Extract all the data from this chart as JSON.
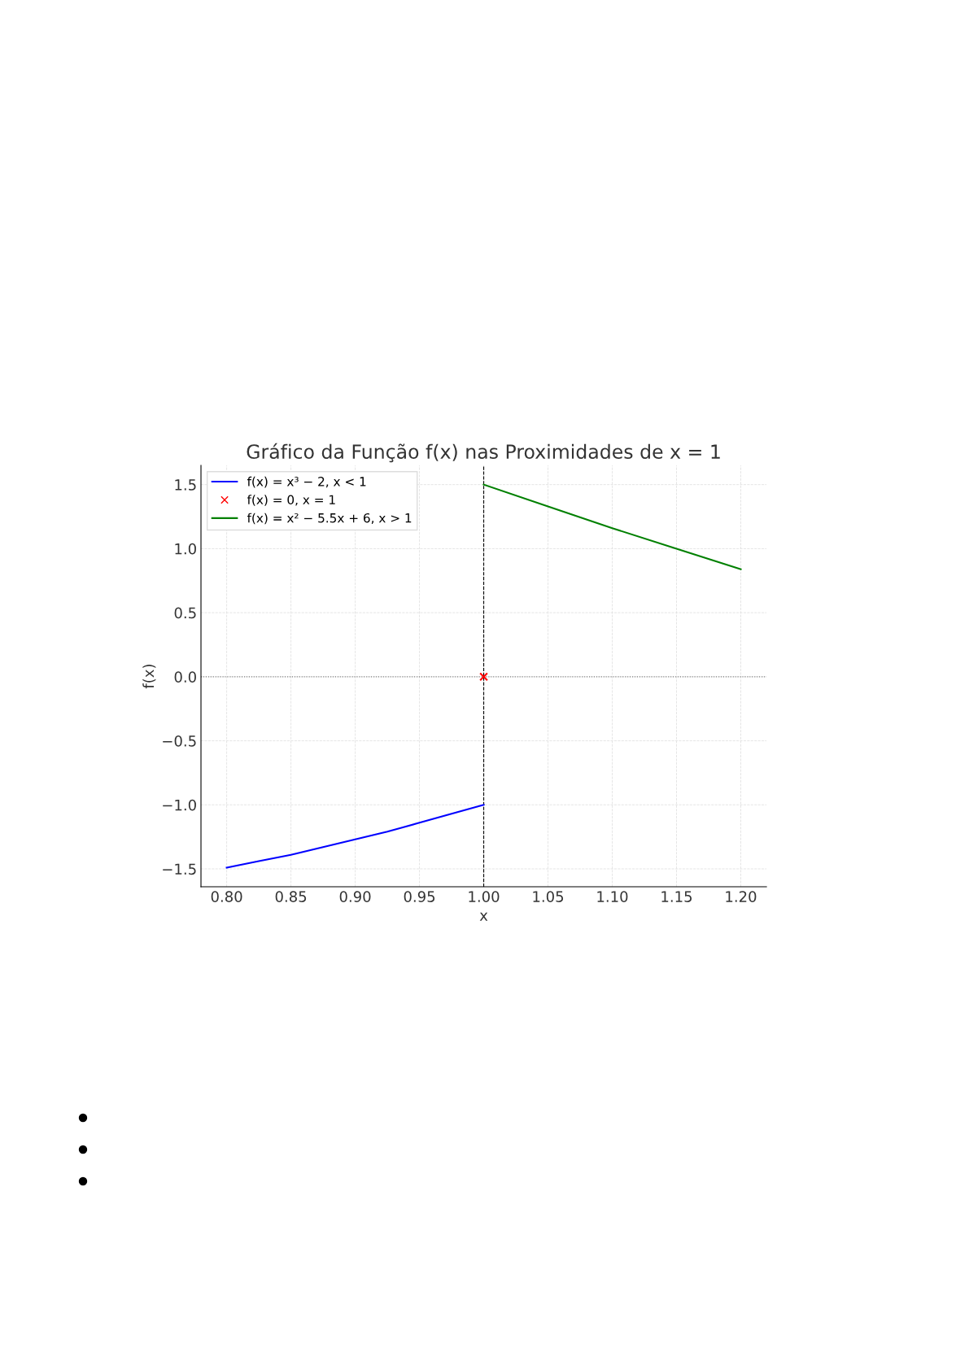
{
  "chart_data": {
    "type": "line",
    "title": "Gráfico da Função f(x) nas Proximidades de x = 1",
    "xlabel": "x",
    "ylabel": "f(x)",
    "series": [
      {
        "name": "f(x) = x³ − 2, x < 1",
        "color": "#0000ff",
        "x": [
          0.8,
          0.825,
          0.85,
          0.875,
          0.9,
          0.925,
          0.95,
          0.975,
          1.0
        ],
        "values": [
          -1.49,
          -1.44,
          -1.39,
          -1.33,
          -1.27,
          -1.21,
          -1.14,
          -1.07,
          -1.0
        ]
      },
      {
        "name": "f(x) = 0, x = 1",
        "color": "#ff0000",
        "type": "scatter",
        "marker": "cross",
        "x": [
          1.0
        ],
        "values": [
          0.0
        ]
      },
      {
        "name": "f(x) = x² − 5.5x + 6, x > 1",
        "color": "#008000",
        "x": [
          1.0,
          1.05,
          1.1,
          1.15,
          1.2
        ],
        "values": [
          1.5,
          1.33,
          1.16,
          1.0,
          0.84
        ]
      }
    ],
    "ref_lines": [
      {
        "axis": "x",
        "value": 1.0,
        "color": "#000000",
        "line_style": "dashed"
      },
      {
        "axis": "y",
        "value": 0.0,
        "color": "#808080",
        "line_style": "dotted"
      }
    ],
    "xlim": [
      0.78,
      1.22
    ],
    "ylim": [
      -1.64,
      1.65
    ],
    "xticks": [
      {
        "value": 0.8,
        "label": "0.80"
      },
      {
        "value": 0.85,
        "label": "0.85"
      },
      {
        "value": 0.9,
        "label": "0.90"
      },
      {
        "value": 0.95,
        "label": "0.95"
      },
      {
        "value": 1.0,
        "label": "1.00"
      },
      {
        "value": 1.05,
        "label": "1.05"
      },
      {
        "value": 1.1,
        "label": "1.10"
      },
      {
        "value": 1.15,
        "label": "1.15"
      },
      {
        "value": 1.2,
        "label": "1.20"
      }
    ],
    "yticks": [
      {
        "value": -1.5,
        "label": "−1.5"
      },
      {
        "value": -1.0,
        "label": "−1.0"
      },
      {
        "value": -0.5,
        "label": "−0.5"
      },
      {
        "value": 0.0,
        "label": "0.0"
      },
      {
        "value": 0.5,
        "label": "0.5"
      },
      {
        "value": 1.0,
        "label": "1.0"
      },
      {
        "value": 1.5,
        "label": "1.5"
      }
    ],
    "grid": true,
    "legend": "top left"
  }
}
